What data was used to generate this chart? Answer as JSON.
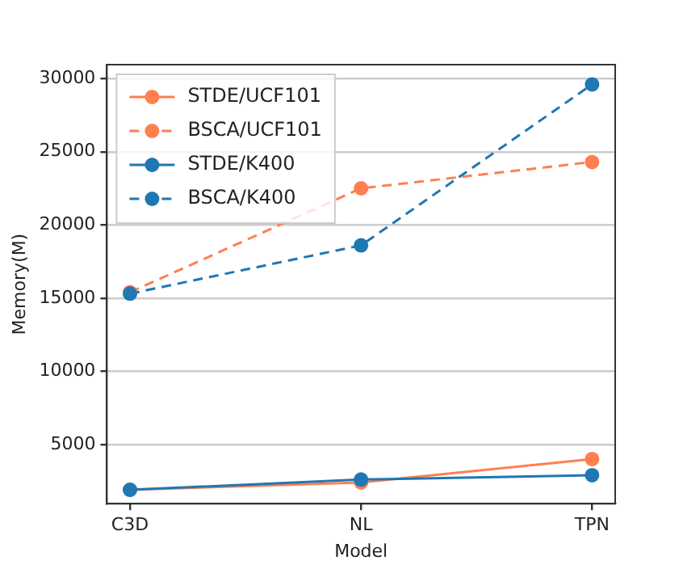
{
  "chart_data": {
    "type": "line",
    "xlabel": "Model",
    "ylabel": "Memory(M)",
    "categories": [
      "C3D",
      "NL",
      "TPN"
    ],
    "series": [
      {
        "name": "STDE/UCF101",
        "color": "#ff7f50",
        "line_style": "solid",
        "values": [
          1900,
          2400,
          4000
        ]
      },
      {
        "name": "BSCA/UCF101",
        "color": "#ff7f50",
        "line_style": "dashed",
        "values": [
          15400,
          22500,
          24300
        ]
      },
      {
        "name": "STDE/K400",
        "color": "#1f77b4",
        "line_style": "solid",
        "values": [
          1900,
          2600,
          2900
        ]
      },
      {
        "name": "BSCA/K400",
        "color": "#1f77b4",
        "line_style": "dashed",
        "values": [
          15300,
          18600,
          29600
        ]
      }
    ],
    "ylim": [
      950,
      30950
    ],
    "yticks": [
      5000,
      10000,
      15000,
      20000,
      25000,
      30000
    ],
    "grid": "y",
    "legend": "top left",
    "marker": "circle"
  }
}
